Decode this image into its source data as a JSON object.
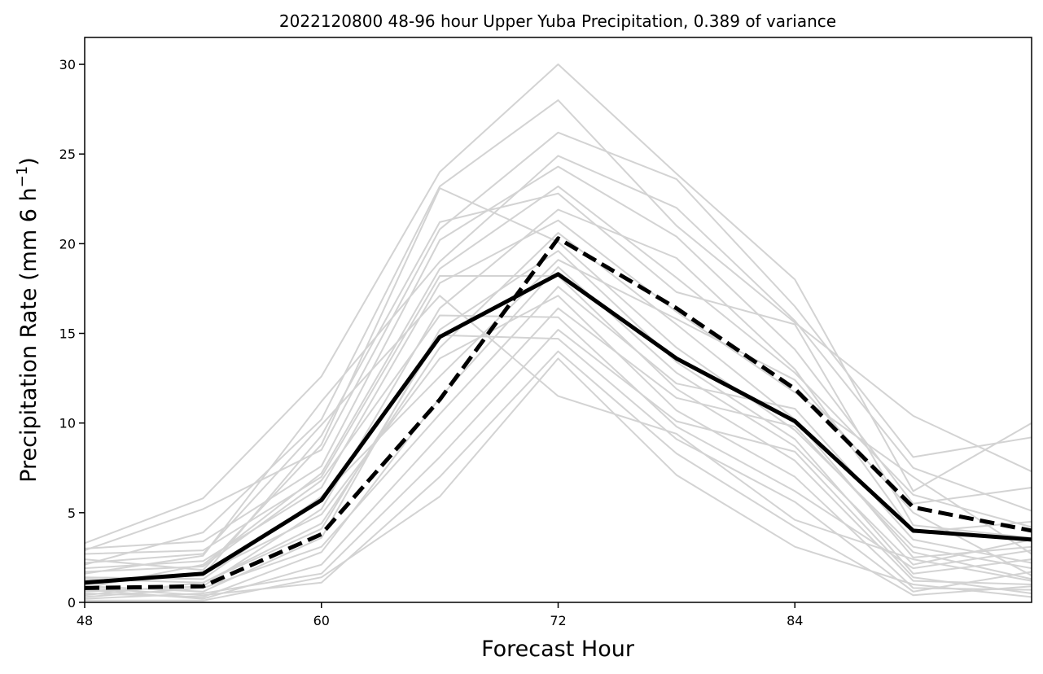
{
  "chart_data": {
    "type": "line",
    "title": "2022120800 48-96 hour Upper Yuba Precipitation, 0.389 of variance",
    "xlabel": "Forecast Hour",
    "ylabel_main": "Precipitation Rate (mm 6 h",
    "ylabel_sup": "−1",
    "ylabel_close": ")",
    "xlim": [
      48,
      96
    ],
    "ylim": [
      0,
      31.5
    ],
    "xticks": [
      48,
      60,
      72,
      84
    ],
    "xtick_labels": [
      "48",
      "60",
      "72",
      "84"
    ],
    "yticks": [
      0,
      5,
      10,
      15,
      20,
      25,
      30
    ],
    "ytick_labels": [
      "0",
      "5",
      "10",
      "15",
      "20",
      "25",
      "30"
    ],
    "grid": false,
    "x": [
      48,
      54,
      60,
      66,
      72,
      78,
      84,
      90,
      96
    ],
    "colors": {
      "ensemble": "#d3d3d3",
      "highlight": "#000000"
    },
    "ensemble_members": [
      [
        3.3,
        5.8,
        12.6,
        24.0,
        30.0,
        23.9,
        18.0,
        6.2,
        10.0
      ],
      [
        2.1,
        3.9,
        10.2,
        23.2,
        28.0,
        21.0,
        15.6,
        10.4,
        7.3
      ],
      [
        2.9,
        5.2,
        8.5,
        20.8,
        26.2,
        23.6,
        16.5,
        8.1,
        9.2
      ],
      [
        1.6,
        2.6,
        11.2,
        19.0,
        24.9,
        22.0,
        15.7,
        7.5,
        5.1
      ],
      [
        3.0,
        3.4,
        7.6,
        20.2,
        24.3,
        20.4,
        14.1,
        5.5,
        6.4
      ],
      [
        0.8,
        2.1,
        7.2,
        18.6,
        23.2,
        18.1,
        12.8,
        6.0,
        4.2
      ],
      [
        1.2,
        1.5,
        9.3,
        21.2,
        22.8,
        17.3,
        15.5,
        4.3,
        3.6
      ],
      [
        0.6,
        0.9,
        5.2,
        16.4,
        21.9,
        19.2,
        13.0,
        3.9,
        4.5
      ],
      [
        1.9,
        2.3,
        6.4,
        17.8,
        21.3,
        16.2,
        11.7,
        7.0,
        2.7
      ],
      [
        0.4,
        1.1,
        4.4,
        14.2,
        20.6,
        15.5,
        10.2,
        2.5,
        3.1
      ],
      [
        2.4,
        1.8,
        8.8,
        23.1,
        20.1,
        14.2,
        9.6,
        3.1,
        1.9
      ],
      [
        0.9,
        0.6,
        3.6,
        15.2,
        19.6,
        13.4,
        9.1,
        1.6,
        2.4
      ],
      [
        1.4,
        1.3,
        5.9,
        12.6,
        19.1,
        15.8,
        12.4,
        5.0,
        1.5
      ],
      [
        0.5,
        0.3,
        2.8,
        11.4,
        18.7,
        12.8,
        8.7,
        2.1,
        3.5
      ],
      [
        2.7,
        2.9,
        7.0,
        18.2,
        18.2,
        11.9,
        7.9,
        1.2,
        1.0
      ],
      [
        0.3,
        0.8,
        3.1,
        10.5,
        17.6,
        12.2,
        10.8,
        3.5,
        2.2
      ],
      [
        1.0,
        1.6,
        4.9,
        13.6,
        17.1,
        10.7,
        7.0,
        0.8,
        0.7
      ],
      [
        0.7,
        0.2,
        2.1,
        9.3,
        16.4,
        11.4,
        9.8,
        2.8,
        1.3
      ],
      [
        1.7,
        2.0,
        6.8,
        16.0,
        15.9,
        9.8,
        6.2,
        1.9,
        2.9
      ],
      [
        0.2,
        0.5,
        1.6,
        8.1,
        15.2,
        10.1,
        8.4,
        1.4,
        0.5
      ],
      [
        1.3,
        1.1,
        4.1,
        14.9,
        14.7,
        9.1,
        5.6,
        0.6,
        1.7
      ],
      [
        0.8,
        0.4,
        1.1,
        7.0,
        14.0,
        8.3,
        4.2,
        0.4,
        0.9
      ],
      [
        0.1,
        0.1,
        1.4,
        5.9,
        13.6,
        7.1,
        3.1,
        1.0,
        0.3
      ],
      [
        2.2,
        2.7,
        9.9,
        17.1,
        11.5,
        9.4,
        4.6,
        2.4,
        1.2
      ]
    ],
    "series": [
      {
        "style": "solid",
        "values": [
          1.1,
          1.6,
          5.7,
          14.8,
          18.3,
          13.6,
          10.1,
          4.0,
          3.5
        ]
      },
      {
        "style": "dashed",
        "values": [
          0.8,
          0.9,
          3.8,
          11.3,
          20.3,
          16.4,
          11.9,
          5.3,
          4.0
        ]
      }
    ]
  }
}
